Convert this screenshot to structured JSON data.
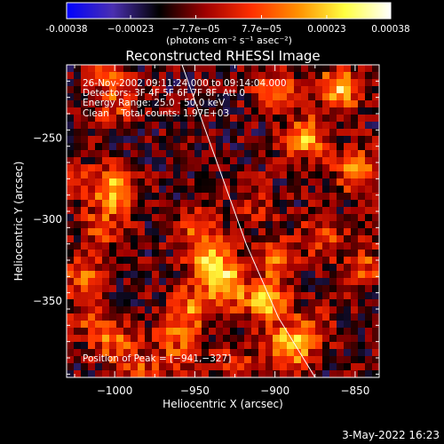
{
  "chart_data": {
    "type": "heatmap",
    "title": "Reconstructed RHESSI Image",
    "xlabel": "Heliocentric X (arcsec)",
    "ylabel": "Heliocentric Y (arcsec)",
    "xlim": [
      -1030,
      -835
    ],
    "ylim": [
      -397,
      -205
    ],
    "x_ticks": [
      -1000,
      -950,
      -900,
      -850
    ],
    "x_tick_labels": [
      "−1000",
      "−950",
      "−900",
      "−850"
    ],
    "y_ticks": [
      -250,
      -300,
      -350
    ],
    "y_tick_labels": [
      "−250",
      "−300",
      "−350"
    ],
    "colorbar": {
      "min": -0.00038,
      "max": 0.00038,
      "ticks": [
        -0.00038,
        -0.00023,
        -7.7e-05,
        7.7e-05,
        0.00023,
        0.00038
      ],
      "tick_labels": [
        "-0.00038",
        "−0.00023",
        "−7.7e−05",
        "7.7e−05",
        "0.00023",
        "0.00038"
      ],
      "unit_label": "(photons cm⁻² s⁻¹ asec⁻²)",
      "colors": [
        "#0000ff",
        "#4a2fb0",
        "#000000",
        "#a00000",
        "#ff3000",
        "#ff9000",
        "#ffff40",
        "#ffffff"
      ]
    },
    "annotations": {
      "time": "26-Nov-2002 09:11:24.000 to 09:14:04.000",
      "detectors": "Detectors: 3F 4F 5F 6F 7F 8F, Att 0",
      "energy": "Energy Range: 25.0 - 50.0 keV",
      "clean": "Clean    Total counts: 1.97E+03",
      "peak": "Position of Peak = [−941,−327]"
    },
    "peak": [
      -941,
      -327
    ],
    "sources": [
      {
        "x": -940,
        "y": -328,
        "value": 0.00038
      },
      {
        "x": -930,
        "y": -342,
        "value": 0.0003
      },
      {
        "x": -948,
        "y": -308,
        "value": 0.00022
      },
      {
        "x": -953,
        "y": -355,
        "value": 0.00024
      },
      {
        "x": -962,
        "y": -372,
        "value": 0.00018
      },
      {
        "x": -905,
        "y": -352,
        "value": 0.00033
      },
      {
        "x": -900,
        "y": -325,
        "value": 0.00022
      },
      {
        "x": -893,
        "y": -380,
        "value": 0.0003
      },
      {
        "x": -880,
        "y": -370,
        "value": 0.00024
      },
      {
        "x": -880,
        "y": -250,
        "value": 0.0003
      },
      {
        "x": -860,
        "y": -220,
        "value": 0.00036
      },
      {
        "x": -850,
        "y": -270,
        "value": 0.00026
      },
      {
        "x": -900,
        "y": -220,
        "value": 0.00024
      },
      {
        "x": -870,
        "y": -310,
        "value": 0.00018
      },
      {
        "x": -845,
        "y": -330,
        "value": 0.0002
      },
      {
        "x": -1020,
        "y": -335,
        "value": 0.00024
      },
      {
        "x": -1008,
        "y": -305,
        "value": 0.00018
      },
      {
        "x": -1000,
        "y": -375,
        "value": 0.00022
      },
      {
        "x": -985,
        "y": -392,
        "value": 0.00016
      },
      {
        "x": -1015,
        "y": -360,
        "value": 0.00016
      },
      {
        "x": -1000,
        "y": -228,
        "value": 0.00016
      },
      {
        "x": -1005,
        "y": -210,
        "value": 0.00014
      },
      {
        "x": -1025,
        "y": -275,
        "value": 0.00012
      },
      {
        "x": -1000,
        "y": -282,
        "value": 0.00034
      },
      {
        "x": -960,
        "y": -392,
        "value": 0.00012
      },
      {
        "x": -925,
        "y": -388,
        "value": 0.00014
      },
      {
        "x": -910,
        "y": -290,
        "value": 0.00012
      }
    ],
    "limb_curve": [
      [
        -958,
        -205
      ],
      [
        -938,
        -260
      ],
      [
        -918,
        -315
      ],
      [
        -898,
        -360
      ],
      [
        -875,
        -397
      ]
    ]
  },
  "footer": {
    "date": "3-May-2022 16:23"
  }
}
